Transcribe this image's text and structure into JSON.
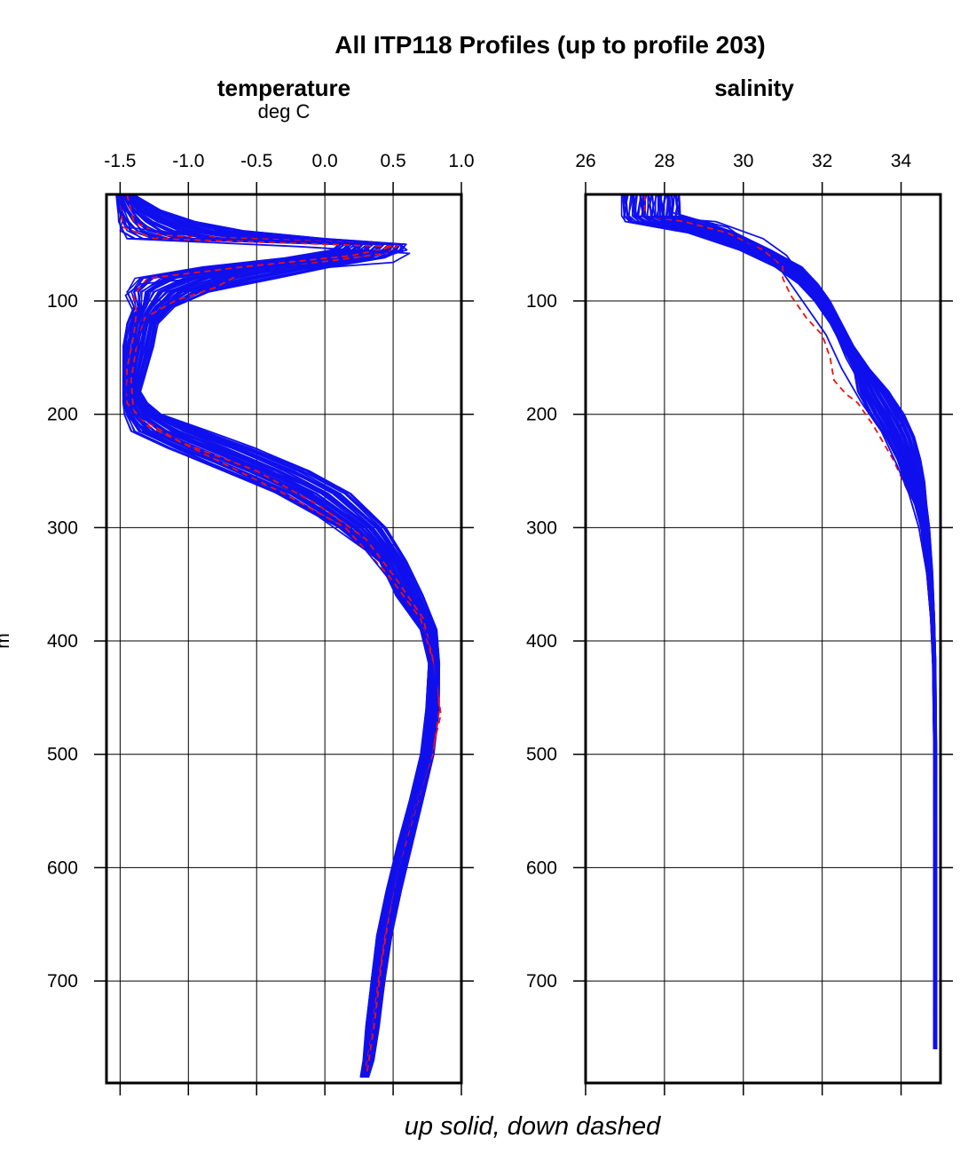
{
  "chart_data": {
    "type": "line",
    "title": "All ITP118 Profiles (up to profile 203)",
    "footer": "up solid, down dashed",
    "ylabel": "m",
    "y_reversed": true,
    "y_range": [
      6,
      790
    ],
    "y_ticks": [
      100,
      200,
      300,
      400,
      500,
      600,
      700
    ],
    "grid": true,
    "series_styles": [
      {
        "name": "up",
        "color": "#1010ee",
        "dash": "solid"
      },
      {
        "name": "down",
        "color": "#ee1111",
        "dash": "dashed"
      }
    ],
    "panels": [
      {
        "key": "temperature",
        "title": "temperature",
        "unit": "deg C",
        "xlim": [
          -1.6,
          1.0
        ],
        "x_ticks": [
          -1.5,
          -1.0,
          -0.5,
          0.0,
          0.5,
          1.0
        ],
        "x_tick_labels": [
          "-1.5",
          "-1.0",
          "-0.5",
          "0.0",
          "0.5",
          "1.0"
        ],
        "profile_band": {
          "depth": [
            6,
            20,
            30,
            38,
            45,
            50,
            55,
            62,
            70,
            80,
            92,
            105,
            120,
            140,
            160,
            180,
            190,
            200,
            215,
            230,
            250,
            270,
            300,
            330,
            360,
            390,
            420,
            460,
            500,
            540,
            580,
            620,
            660,
            700,
            740,
            770,
            785
          ],
          "lower": [
            -1.53,
            -1.52,
            -1.51,
            -1.5,
            -1.4,
            0.1,
            0.05,
            -0.3,
            -0.9,
            -1.4,
            -1.45,
            -1.4,
            -1.45,
            -1.48,
            -1.48,
            -1.48,
            -1.48,
            -1.47,
            -1.42,
            -1.15,
            -0.75,
            -0.35,
            0.1,
            0.4,
            0.52,
            0.7,
            0.76,
            0.74,
            0.7,
            0.62,
            0.53,
            0.45,
            0.38,
            0.34,
            0.3,
            0.28,
            0.26
          ],
          "upper": [
            -1.4,
            -1.2,
            -0.95,
            -0.6,
            0.0,
            0.6,
            0.58,
            0.45,
            0.05,
            -0.35,
            -0.85,
            -1.1,
            -1.22,
            -1.25,
            -1.3,
            -1.35,
            -1.3,
            -1.2,
            -0.85,
            -0.5,
            -0.1,
            0.2,
            0.45,
            0.6,
            0.72,
            0.82,
            0.84,
            0.84,
            0.8,
            0.72,
            0.64,
            0.56,
            0.49,
            0.44,
            0.4,
            0.36,
            0.32
          ]
        },
        "up_profiles": [
          {
            "depth": [
              6,
              25,
              35,
              45,
              50,
              55,
              62,
              70,
              80,
              92,
              105,
              120,
              150,
              180,
              200,
              215,
              230,
              250,
              270,
              300,
              330,
              360,
              390,
              420,
              460,
              500,
              540,
              580,
              620,
              660,
              700,
              740,
              770,
              785
            ],
            "temp": [
              -1.5,
              -1.48,
              -1.45,
              -0.8,
              0.55,
              0.6,
              0.4,
              -0.3,
              -0.9,
              -1.15,
              -1.28,
              -1.32,
              -1.42,
              -1.45,
              -1.4,
              -1.15,
              -0.8,
              -0.4,
              0.0,
              0.35,
              0.55,
              0.65,
              0.78,
              0.82,
              0.82,
              0.78,
              0.68,
              0.58,
              0.5,
              0.43,
              0.38,
              0.34,
              0.3,
              0.27
            ]
          },
          {
            "depth": [
              6,
              30,
              45,
              52,
              58,
              66,
              75,
              85,
              95,
              110,
              130,
              160,
              185,
              200,
              220,
              240,
              260,
              290,
              320,
              350,
              380,
              410,
              450,
              500,
              550,
              600,
              650,
              700,
              750,
              780
            ],
            "temp": [
              -1.52,
              -1.51,
              -1.45,
              -0.2,
              0.62,
              0.5,
              -0.5,
              -1.35,
              -1.46,
              -1.4,
              -1.45,
              -1.47,
              -1.47,
              -1.45,
              -1.25,
              -0.9,
              -0.5,
              -0.05,
              0.3,
              0.5,
              0.68,
              0.8,
              0.82,
              0.77,
              0.64,
              0.52,
              0.44,
              0.38,
              0.32,
              0.28
            ]
          }
        ],
        "down_profiles": [
          {
            "depth": [
              6,
              30,
              42,
              50,
              58,
              66,
              75,
              88,
              100,
              115,
              140,
              170,
              200,
              225,
              250,
              280,
              310,
              345,
              380,
              420,
              465,
              500,
              550,
              600,
              650,
              700,
              750,
              775
            ],
            "temp": [
              -1.45,
              -1.4,
              -1.2,
              0.55,
              0.45,
              -0.05,
              -0.6,
              -0.8,
              -1.1,
              -1.32,
              -1.38,
              -1.42,
              -1.4,
              -1.05,
              -0.5,
              -0.05,
              0.3,
              0.52,
              0.72,
              0.8,
              0.85,
              0.78,
              0.66,
              0.54,
              0.45,
              0.39,
              0.33,
              0.3
            ]
          },
          {
            "depth": [
              6,
              35,
              45,
              52,
              60,
              70,
              80,
              95,
              110,
              130,
              160,
              190,
              210,
              240,
              270,
              300,
              340,
              380,
              420,
              460,
              500,
              560,
              620,
              680,
              740,
              780
            ],
            "temp": [
              -1.5,
              -1.48,
              -1.25,
              0.5,
              0.2,
              -0.6,
              -1.3,
              -1.4,
              -1.38,
              -1.4,
              -1.45,
              -1.45,
              -1.3,
              -0.8,
              -0.3,
              0.15,
              0.45,
              0.7,
              0.8,
              0.84,
              0.79,
              0.62,
              0.5,
              0.42,
              0.36,
              0.31
            ]
          }
        ]
      },
      {
        "key": "salinity",
        "title": "salinity",
        "unit": "",
        "xlim": [
          26,
          35
        ],
        "x_ticks": [
          26,
          28,
          30,
          32,
          34
        ],
        "x_tick_labels": [
          "26",
          "28",
          "30",
          "32",
          "34"
        ],
        "profile_band": {
          "depth": [
            6,
            15,
            25,
            30,
            40,
            55,
            70,
            85,
            100,
            120,
            140,
            160,
            180,
            200,
            220,
            240,
            260,
            280,
            300,
            340,
            380,
            420,
            500,
            600,
            700,
            760
          ],
          "lower": [
            26.9,
            26.9,
            26.9,
            27.0,
            28.6,
            29.9,
            30.8,
            31.4,
            31.8,
            32.2,
            32.5,
            32.8,
            32.9,
            33.2,
            33.6,
            33.9,
            34.1,
            34.35,
            34.5,
            34.65,
            34.75,
            34.8,
            34.83,
            34.83,
            34.83,
            34.83
          ],
          "upper": [
            28.4,
            28.4,
            28.4,
            29.0,
            29.8,
            30.7,
            31.5,
            31.9,
            32.2,
            32.5,
            32.8,
            33.2,
            33.7,
            34.1,
            34.35,
            34.5,
            34.6,
            34.65,
            34.72,
            34.8,
            34.85,
            34.88,
            34.9,
            34.9,
            34.9,
            34.9
          ]
        },
        "up_profiles": [
          {
            "depth": [
              6,
              20,
              25,
              30,
              45,
              60,
              80,
              100,
              125,
              150,
              175,
              200,
              225,
              250,
              280,
              320,
              380,
              450,
              550,
              650,
              760
            ],
            "sal": [
              27.2,
              27.2,
              27.3,
              29.3,
              30.5,
              31.1,
              31.5,
              31.9,
              32.3,
              32.6,
              33.0,
              33.5,
              33.9,
              34.2,
              34.5,
              34.7,
              34.82,
              34.86,
              34.87,
              34.87,
              34.87
            ]
          },
          {
            "depth": [
              6,
              22,
              28,
              35,
              50,
              65,
              85,
              105,
              130,
              160,
              190,
              215,
              245,
              270,
              300,
              350,
              420,
              520,
              640,
              760
            ],
            "sal": [
              28.2,
              28.2,
              28.8,
              29.6,
              30.2,
              30.8,
              31.2,
              31.6,
              32.1,
              32.5,
              33.0,
              33.5,
              33.9,
              34.2,
              34.45,
              34.7,
              34.82,
              34.86,
              34.87,
              34.87
            ]
          }
        ],
        "down_profiles": [
          {
            "depth": [
              6,
              25,
              30,
              40,
              55,
              70,
              80,
              95,
              115,
              130,
              150,
              170,
              182,
              190,
              210,
              240,
              270,
              300,
              350,
              420,
              500,
              600
            ],
            "sal": [
              27.5,
              27.5,
              28.5,
              29.6,
              30.5,
              31.0,
              31.0,
              31.2,
              31.6,
              32.0,
              32.2,
              32.3,
              32.6,
              32.9,
              33.3,
              33.8,
              34.2,
              34.45,
              34.7,
              34.82,
              34.86,
              34.87
            ]
          }
        ]
      }
    ]
  }
}
